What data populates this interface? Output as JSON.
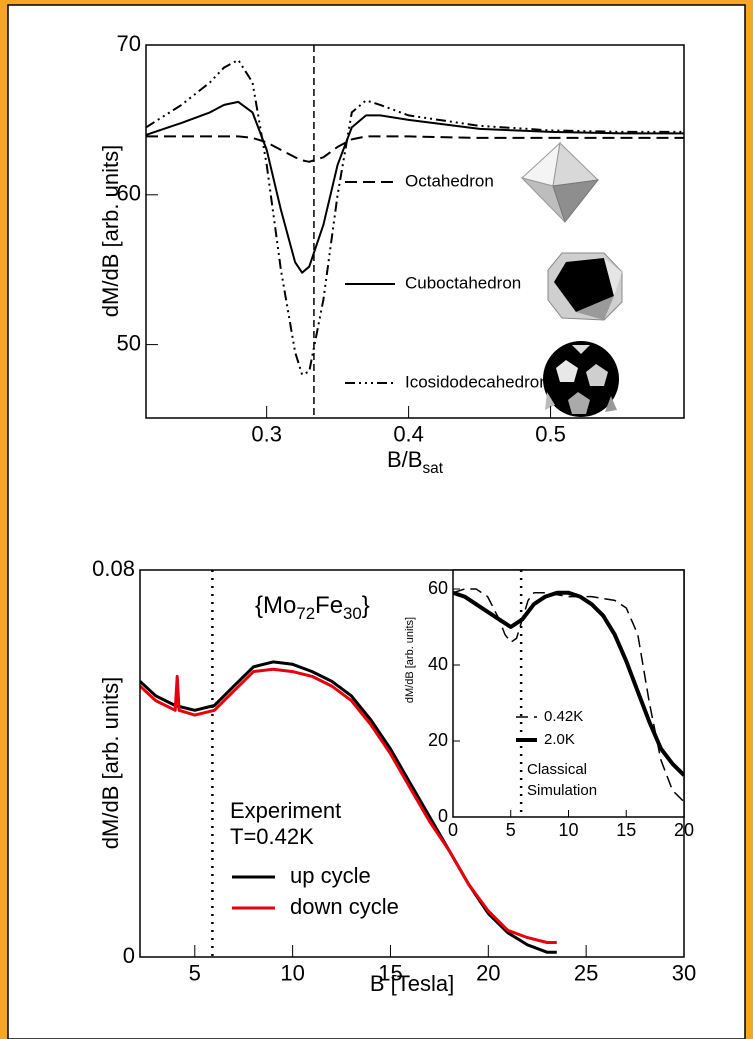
{
  "chart_data": [
    {
      "type": "line",
      "ylabel": "dM/dB [arb. units]",
      "xlabel": {
        "text": "B/B",
        "sub": "sat"
      },
      "xlim": [
        0.215,
        0.594
      ],
      "ylim": [
        45.1,
        70
      ],
      "xticks": [
        0.3,
        0.4,
        0.5
      ],
      "yticks": [
        50,
        60,
        70
      ],
      "vlines": [
        {
          "x": 0.3333,
          "style": "dashed"
        }
      ],
      "x": [
        0.215,
        0.24,
        0.26,
        0.27,
        0.28,
        0.29,
        0.3,
        0.31,
        0.32,
        0.325,
        0.33,
        0.34,
        0.35,
        0.36,
        0.37,
        0.38,
        0.4,
        0.45,
        0.5,
        0.55,
        0.594
      ],
      "series": [
        {
          "name": "Octahedron",
          "color": "#000000",
          "style": "dashed",
          "width": 2,
          "values": [
            63.9,
            63.9,
            63.9,
            63.9,
            63.9,
            63.8,
            63.5,
            63.0,
            62.5,
            62.3,
            62.2,
            62.5,
            63.2,
            63.7,
            63.9,
            63.9,
            63.9,
            63.8,
            63.8,
            63.8,
            63.8
          ]
        },
        {
          "name": "Cuboctahedron",
          "color": "#000000",
          "style": "solid",
          "width": 2,
          "values": [
            64.0,
            64.8,
            65.5,
            66.0,
            66.2,
            65.5,
            63.0,
            59.0,
            55.5,
            54.8,
            55.2,
            58.0,
            62.0,
            64.5,
            65.3,
            65.3,
            65.0,
            64.4,
            64.2,
            64.1,
            64.1
          ]
        },
        {
          "name": "Icosidodecahedron",
          "color": "#000000",
          "style": "dashdot",
          "width": 2,
          "values": [
            64.5,
            66.0,
            67.5,
            68.5,
            69.0,
            67.5,
            62.0,
            55.0,
            49.5,
            48.0,
            48.2,
            53.0,
            60.0,
            65.5,
            66.3,
            66.0,
            65.3,
            64.6,
            64.3,
            64.2,
            64.2
          ]
        }
      ]
    },
    {
      "type": "line",
      "ylabel": "dM/dB [arb. units]",
      "xlabel": {
        "text": "B [Tesla]"
      },
      "xlim": [
        2.2,
        30
      ],
      "ylim": [
        0,
        0.08
      ],
      "xticks": [
        5,
        10,
        15,
        20,
        25,
        30
      ],
      "yticks": [
        0,
        0.08
      ],
      "vlines": [
        {
          "x": 5.9,
          "style": "dotted"
        }
      ],
      "annotation": [
        "{Mo",
        "72",
        "Fe",
        "30",
        "}"
      ],
      "legend_title": [
        "Experiment",
        "T=0.42K"
      ],
      "series": [
        {
          "name": "up cycle",
          "color": "#000000",
          "style": "solid",
          "width": 3,
          "x": [
            2.2,
            3,
            4,
            5,
            6,
            7,
            8,
            9,
            10,
            11,
            12,
            13,
            14,
            15,
            16,
            17,
            18,
            19,
            20,
            21,
            22,
            23,
            23.5
          ],
          "values": [
            0.057,
            0.054,
            0.052,
            0.051,
            0.052,
            0.056,
            0.06,
            0.061,
            0.0605,
            0.059,
            0.057,
            0.054,
            0.049,
            0.043,
            0.036,
            0.029,
            0.022,
            0.015,
            0.009,
            0.005,
            0.0025,
            0.001,
            0.001
          ]
        },
        {
          "name": "down cycle",
          "color": "#e8000b",
          "style": "solid",
          "width": 3,
          "x": [
            2.2,
            3,
            4,
            4.1,
            4.2,
            5,
            6,
            7,
            8,
            9,
            10,
            11,
            12,
            13,
            14,
            15,
            16,
            17,
            18,
            19,
            20,
            21,
            22,
            23,
            23.5
          ],
          "values": [
            0.056,
            0.053,
            0.051,
            0.058,
            0.051,
            0.05,
            0.051,
            0.055,
            0.059,
            0.0595,
            0.059,
            0.058,
            0.056,
            0.053,
            0.048,
            0.042,
            0.035,
            0.028,
            0.022,
            0.015,
            0.0095,
            0.0055,
            0.004,
            0.003,
            0.003
          ]
        }
      ]
    },
    {
      "type": "line",
      "ylabel": "dM/dB [arb. units]",
      "xlim": [
        0,
        20
      ],
      "ylim": [
        0,
        65
      ],
      "xticks": [
        0,
        5,
        10,
        15,
        20
      ],
      "yticks": [
        0,
        20,
        40,
        60
      ],
      "vlines": [
        {
          "x": 5.9,
          "style": "dotted"
        }
      ],
      "notes": [
        "Classical",
        "Simulation"
      ],
      "series": [
        {
          "name": "0.42K",
          "color": "#000000",
          "style": "dashed",
          "width": 1.5,
          "x": [
            0,
            1,
            2,
            3,
            4,
            4.5,
            5,
            5.5,
            6,
            6.5,
            7,
            8,
            10,
            12,
            14,
            15,
            16,
            17,
            18,
            19,
            20
          ],
          "values": [
            59,
            60,
            60,
            58,
            52,
            48,
            46,
            47,
            52,
            57,
            59,
            59,
            58,
            58,
            57,
            55,
            48,
            30,
            15,
            7,
            4
          ]
        },
        {
          "name": "2.0K",
          "color": "#000000",
          "style": "solid",
          "width": 4,
          "x": [
            0,
            1,
            2,
            3,
            4,
            5,
            5.5,
            6,
            7,
            8,
            9,
            10,
            11,
            12,
            13,
            14,
            15,
            16,
            17,
            18,
            19,
            20
          ],
          "values": [
            59,
            58,
            56,
            54,
            52,
            50,
            51,
            52,
            56,
            58,
            59,
            59,
            58,
            56,
            53,
            48,
            41,
            33,
            25,
            18,
            14,
            11
          ]
        }
      ]
    }
  ]
}
